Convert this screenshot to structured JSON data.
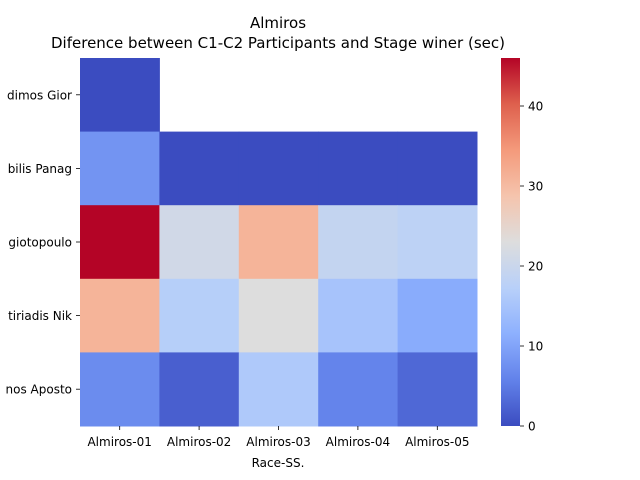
{
  "chart_data": {
    "type": "heatmap",
    "title": "Almiros",
    "subtitle": "Diference between C1-C2 Participants and Stage winer (sec)",
    "xlabel": "Race-SS.",
    "ylabel": "",
    "x_categories": [
      "Almiros-01",
      "Almiros-02",
      "Almiros-03",
      "Almiros-04",
      "Almiros-05"
    ],
    "y_categories": [
      "dimos Gior",
      "bilis Panag",
      "giotopoulo",
      "tiriadis Nik",
      "nos Aposto"
    ],
    "values": [
      [
        0,
        null,
        null,
        null,
        null
      ],
      [
        8,
        0,
        0,
        0,
        0
      ],
      [
        46,
        21,
        31,
        19,
        18
      ],
      [
        31,
        17,
        23,
        15,
        11
      ],
      [
        7,
        2,
        16,
        6,
        3
      ]
    ],
    "colorbar": {
      "min": 0,
      "max": 46,
      "ticks": [
        0,
        10,
        20,
        30,
        40
      ],
      "colormap": "coolwarm"
    },
    "grid": false
  }
}
